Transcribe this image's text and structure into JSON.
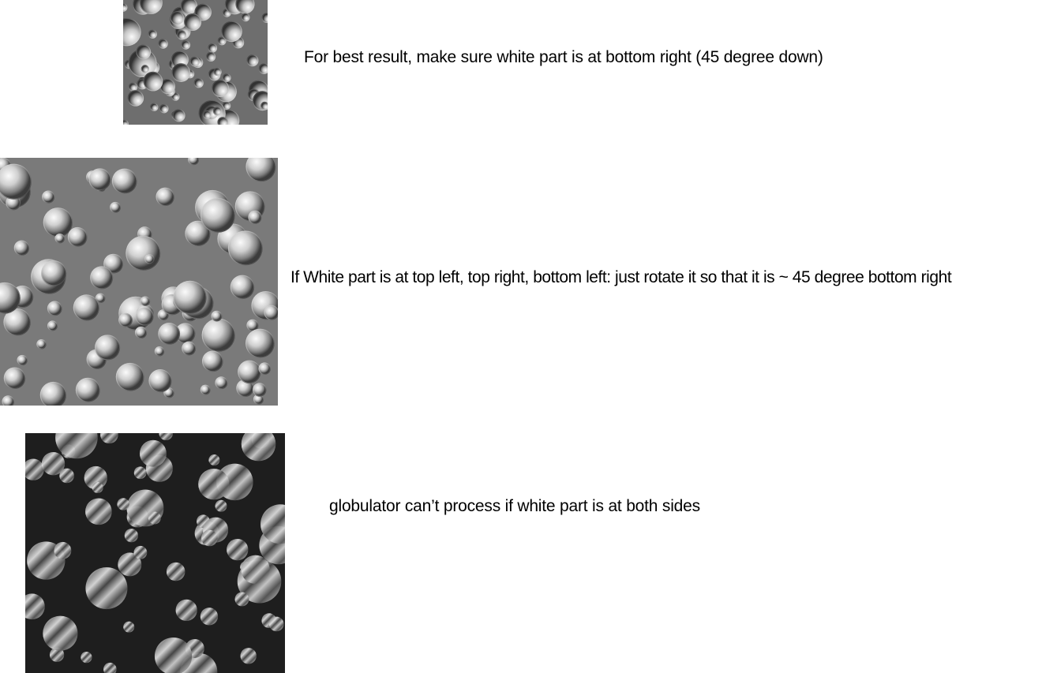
{
  "examples": [
    {
      "caption": "For best result, make sure white part is at bottom right (45 degree down)",
      "background": "#6e6e6e",
      "highlight": "bottom-right",
      "seed": 11
    },
    {
      "caption": "If White part is at top left, top right, bottom left: just rotate it so that it is ~ 45 degree bottom right",
      "background": "#7a7a7a",
      "highlight": "top-left",
      "seed": 29
    },
    {
      "caption": "globulator can’t process  if white part is at both sides",
      "background": "#1e1e1e",
      "highlight": "both-sides",
      "seed": 47
    }
  ]
}
